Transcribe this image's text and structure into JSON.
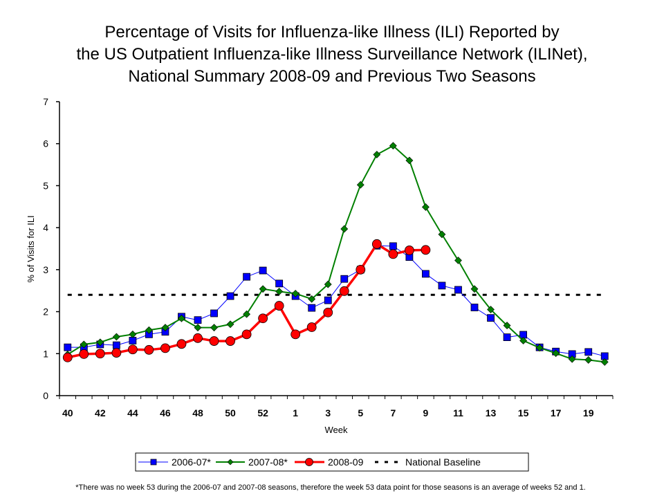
{
  "chart_data": {
    "type": "line",
    "title": [
      "Percentage of Visits for Influenza-like Illness (ILI) Reported by",
      "the US Outpatient Influenza-like Illness Surveillance Network (ILINet),",
      "National Summary 2008-09 and Previous Two Seasons"
    ],
    "xlabel": "Week",
    "ylabel": "% of Visits for ILI",
    "ylim": [
      0,
      7
    ],
    "yticks": [
      0,
      1,
      2,
      3,
      4,
      5,
      6,
      7
    ],
    "x": [
      40,
      41,
      42,
      43,
      44,
      45,
      46,
      47,
      48,
      49,
      50,
      51,
      52,
      53,
      1,
      2,
      3,
      4,
      5,
      6,
      7,
      8,
      9,
      10,
      11,
      12,
      13,
      14,
      15,
      16,
      17,
      18,
      19,
      20
    ],
    "xtick_labels": [
      "40",
      "42",
      "44",
      "46",
      "48",
      "50",
      "52",
      "1",
      "3",
      "5",
      "7",
      "9",
      "11",
      "13",
      "15",
      "17",
      "19"
    ],
    "grid": false,
    "legend_position": "bottom",
    "series": [
      {
        "name": "2006-07*",
        "color": "#0000FF",
        "marker": "square",
        "values": [
          1.15,
          1.15,
          1.22,
          1.2,
          1.31,
          1.46,
          1.52,
          1.88,
          1.8,
          1.96,
          2.37,
          2.83,
          2.98,
          2.67,
          2.37,
          2.09,
          2.27,
          2.78,
          3.0,
          3.57,
          3.56,
          3.3,
          2.9,
          2.62,
          2.52,
          2.1,
          1.85,
          1.39,
          1.45,
          1.15,
          1.05,
          0.99,
          1.04,
          0.94
        ]
      },
      {
        "name": "2007-08*",
        "color": "#008000",
        "marker": "diamond",
        "values": [
          0.98,
          1.22,
          1.27,
          1.4,
          1.46,
          1.56,
          1.62,
          1.84,
          1.62,
          1.62,
          1.7,
          1.94,
          2.54,
          2.48,
          2.43,
          2.3,
          2.65,
          3.97,
          5.02,
          5.74,
          5.95,
          5.6,
          4.49,
          3.84,
          3.22,
          2.54,
          2.05,
          1.67,
          1.31,
          1.14,
          1.01,
          0.87,
          0.85,
          0.8
        ]
      },
      {
        "name": "2008-09",
        "color": "#FF0000",
        "marker": "circle",
        "values": [
          0.91,
          0.99,
          1.0,
          1.02,
          1.1,
          1.09,
          1.13,
          1.23,
          1.37,
          1.3,
          1.3,
          1.46,
          1.84,
          2.14,
          1.46,
          1.63,
          1.98,
          2.49,
          3.0,
          3.61,
          3.37,
          3.46,
          3.47,
          null,
          null,
          null,
          null,
          null,
          null,
          null,
          null,
          null,
          null,
          null
        ]
      }
    ],
    "baseline": {
      "name": "National Baseline",
      "value": 2.4,
      "color": "#000000",
      "style": "dashed"
    },
    "footnote": "*There was no week 53 during the 2006-07 and 2007-08 seasons, therefore the week 53 data point for those seasons is an average of weeks 52 and 1."
  }
}
